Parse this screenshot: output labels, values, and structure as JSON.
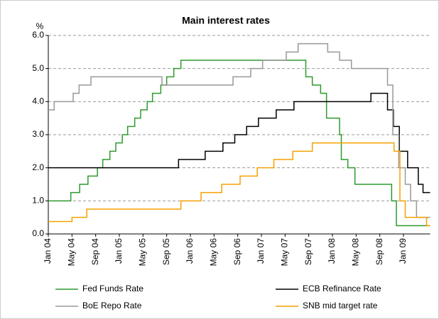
{
  "chart_data": {
    "type": "line",
    "step": true,
    "title": "Main interest rates",
    "y_label": "%",
    "xlim": [
      0,
      64.5
    ],
    "xticks": [
      {
        "value": 0,
        "label": "Jan 04"
      },
      {
        "value": 4,
        "label": "May 04"
      },
      {
        "value": 8,
        "label": "Sep 04"
      },
      {
        "value": 12,
        "label": "Jan 05"
      },
      {
        "value": 16,
        "label": "May 05"
      },
      {
        "value": 20,
        "label": "Sep 05"
      },
      {
        "value": 24,
        "label": "Jan 06"
      },
      {
        "value": 28,
        "label": "May 06"
      },
      {
        "value": 32,
        "label": "Sep 06"
      },
      {
        "value": 36,
        "label": "Jan 07"
      },
      {
        "value": 40,
        "label": "May 07"
      },
      {
        "value": 44,
        "label": "Sep 07"
      },
      {
        "value": 48,
        "label": "Jan 08"
      },
      {
        "value": 52,
        "label": "May 08"
      },
      {
        "value": 56,
        "label": "Sep 08"
      },
      {
        "value": 60,
        "label": "Jan 09"
      }
    ],
    "ylim": [
      0,
      6
    ],
    "yticks": [
      {
        "value": 0,
        "label": "0.0"
      },
      {
        "value": 1,
        "label": "1.0"
      },
      {
        "value": 2,
        "label": "2.0"
      },
      {
        "value": 3,
        "label": "3.0"
      },
      {
        "value": 4,
        "label": "4.0"
      },
      {
        "value": 5,
        "label": "5.0"
      },
      {
        "value": 6,
        "label": "6.0"
      }
    ],
    "grid": true,
    "legend": "bottom",
    "series": [
      {
        "name": "Fed Funds Rate",
        "color": "#2e9a2e",
        "x": [
          0,
          3.8,
          5.3,
          6.7,
          8.3,
          9.2,
          10.4,
          11.4,
          12.5,
          13.4,
          14.6,
          15.6,
          16.7,
          17.6,
          19,
          20,
          21.2,
          22.4,
          43.5,
          44.6,
          46,
          47,
          49.2,
          49.5,
          50.6,
          51.8,
          58,
          58.8,
          60.2
        ],
        "values": [
          1.0,
          1.25,
          1.5,
          1.75,
          2.0,
          2.25,
          2.5,
          2.75,
          3.0,
          3.25,
          3.5,
          3.75,
          4.0,
          4.25,
          4.5,
          4.75,
          5.0,
          5.25,
          4.75,
          4.5,
          4.25,
          3.5,
          3.0,
          2.25,
          2.0,
          1.5,
          1.0,
          0.25,
          0.25
        ]
      },
      {
        "name": "ECB Refinance Rate",
        "color": "#000000",
        "x": [
          0,
          22,
          26.5,
          29.5,
          31.5,
          33.5,
          35.5,
          38.5,
          41.5,
          54.5,
          57.3,
          58.3,
          59.3,
          60.7,
          62.5,
          63.3
        ],
        "values": [
          2.0,
          2.25,
          2.5,
          2.75,
          3.0,
          3.25,
          3.5,
          3.75,
          4.0,
          4.25,
          3.75,
          3.25,
          2.5,
          2.0,
          1.5,
          1.25
        ]
      },
      {
        "name": "BoE Repo Rate",
        "color": "#999999",
        "x": [
          0,
          1,
          4.2,
          5.2,
          7.2,
          19.2,
          31.2,
          34.2,
          36.2,
          40.2,
          42.2,
          47.2,
          49.2,
          51.2,
          57.3,
          58.2,
          59.2,
          60.3,
          61.2,
          62.2
        ],
        "values": [
          3.75,
          4.0,
          4.25,
          4.5,
          4.75,
          4.5,
          4.75,
          5.0,
          5.25,
          5.5,
          5.75,
          5.5,
          5.25,
          5.0,
          4.5,
          3.0,
          2.0,
          1.5,
          1.0,
          0.5
        ]
      },
      {
        "name": "SNB mid target rate",
        "color": "#f5a100",
        "x": [
          0,
          4,
          6.5,
          22.4,
          25.8,
          29.3,
          32.4,
          35.3,
          38.1,
          41.3,
          44.6,
          58.4,
          59.4,
          60.3,
          63.9
        ],
        "values": [
          0.375,
          0.5,
          0.75,
          1.0,
          1.25,
          1.5,
          1.75,
          2.0,
          2.25,
          2.5,
          2.75,
          2.5,
          1.0,
          0.5,
          0.25
        ]
      }
    ]
  }
}
